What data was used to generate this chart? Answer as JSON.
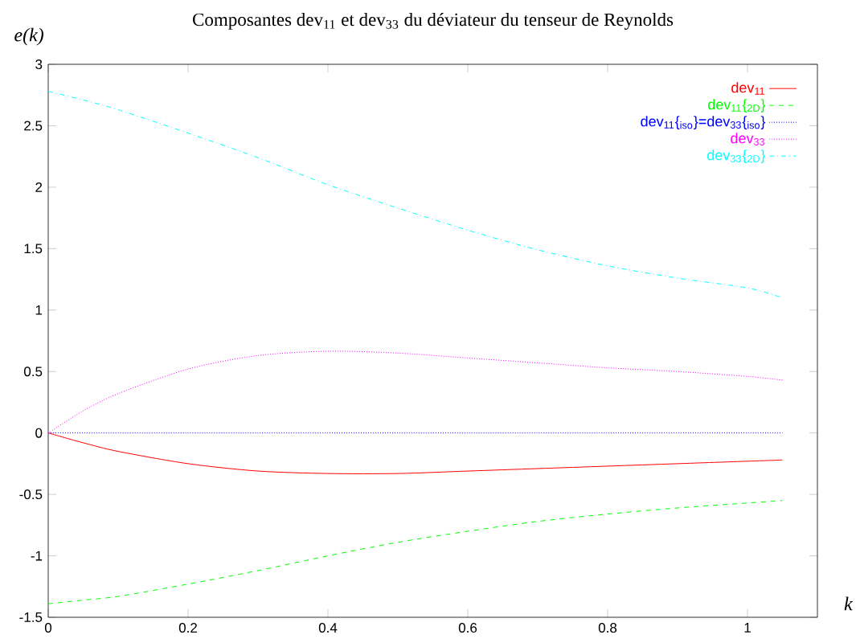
{
  "chart_data": {
    "type": "line",
    "title": "Composantes dev$_{11}$ et dev$_{33}$ du déviateur du tenseur de Reynolds",
    "xlabel": "k",
    "ylabel": "e(k)",
    "x": [
      0,
      0.05,
      0.1,
      0.2,
      0.3,
      0.4,
      0.5,
      0.6,
      0.7,
      0.8,
      0.9,
      1.0,
      1.05
    ],
    "series": [
      {
        "name": "dev$_{11}$",
        "color": "#ff0000",
        "line_style": "solid",
        "values": [
          0,
          -0.08,
          -0.15,
          -0.25,
          -0.31,
          -0.33,
          -0.33,
          -0.31,
          -0.29,
          -0.27,
          -0.25,
          -0.23,
          -0.22
        ]
      },
      {
        "name": "dev$_{11}${$_{2D}$}",
        "color": "#00ff00",
        "line_style": "dashed",
        "values": [
          -1.39,
          -1.36,
          -1.33,
          -1.23,
          -1.12,
          -1.0,
          -0.89,
          -0.8,
          -0.72,
          -0.66,
          -0.61,
          -0.57,
          -0.55
        ]
      },
      {
        "name": "dev$_{11}${$_{iso}$}=dev$_{33}${$_{iso}$}",
        "color": "#0000ff",
        "line_style": "dotted",
        "values": [
          0,
          0,
          0,
          0,
          0,
          0,
          0,
          0,
          0,
          0,
          0,
          0,
          0
        ]
      },
      {
        "name": "dev$_{33}$",
        "color": "#ff00ff",
        "line_style": "dotted",
        "values": [
          0,
          0.18,
          0.32,
          0.52,
          0.63,
          0.665,
          0.65,
          0.61,
          0.57,
          0.53,
          0.5,
          0.46,
          0.43
        ]
      },
      {
        "name": "dev$_{33}${$_{2D}$}",
        "color": "#00ffff",
        "line_style": "dashdot",
        "values": [
          2.78,
          2.71,
          2.63,
          2.44,
          2.24,
          2.02,
          1.83,
          1.65,
          1.49,
          1.36,
          1.26,
          1.18,
          1.1
        ]
      }
    ],
    "xlim": [
      0,
      1.1
    ],
    "xticks": [
      0,
      0.2,
      0.4,
      0.6,
      0.8,
      1
    ],
    "ylim": [
      -1.5,
      3
    ],
    "yticks": [
      -1.5,
      -1,
      -0.5,
      0,
      0.5,
      1,
      1.5,
      2,
      2.5,
      3
    ],
    "legend": "top right",
    "grid": false,
    "marker": "none"
  }
}
